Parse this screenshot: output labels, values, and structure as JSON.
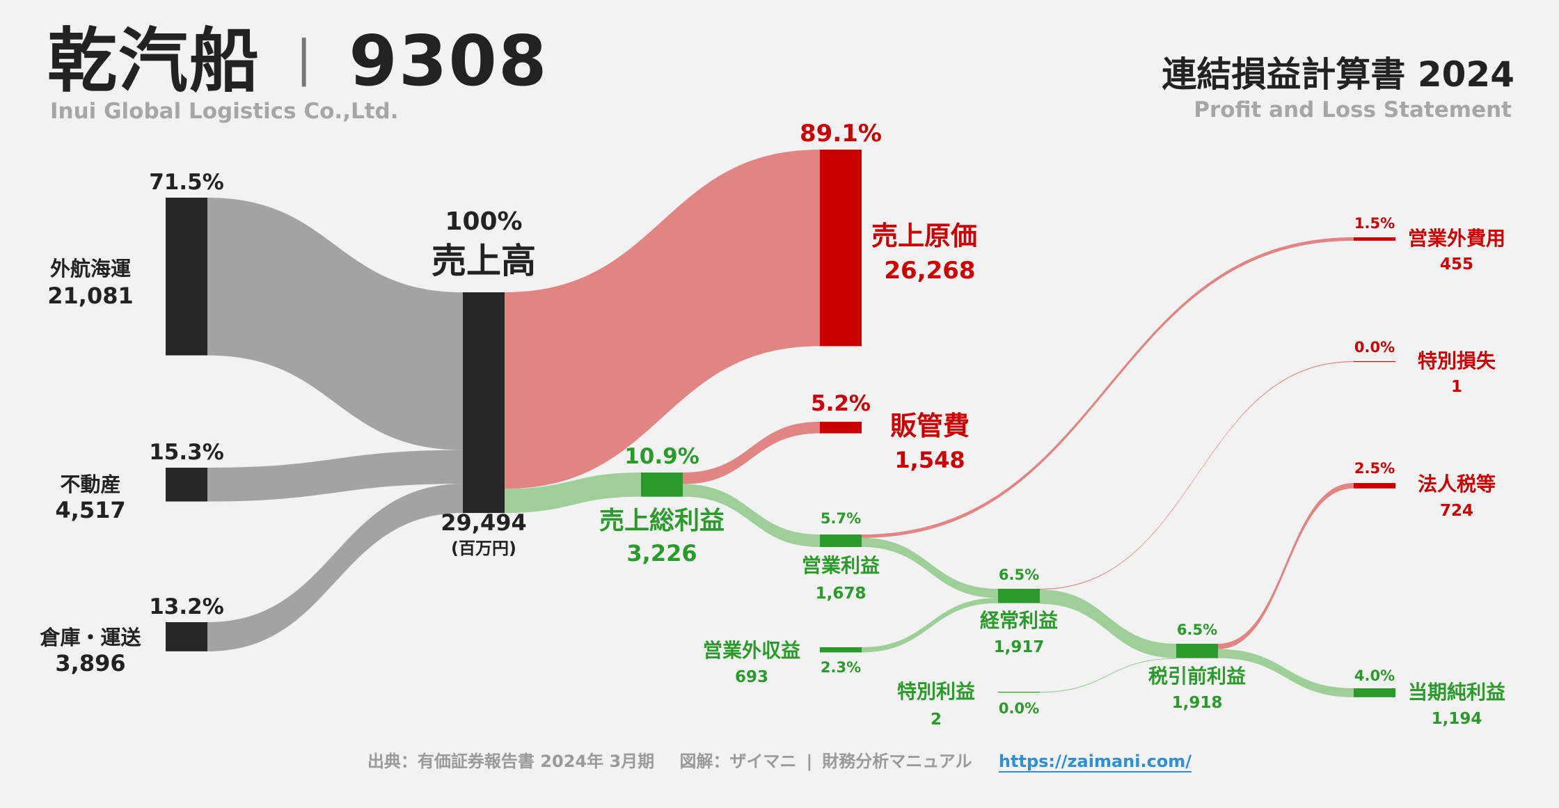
{
  "header": {
    "company": "乾汽船",
    "divider": "|",
    "ticker": "9308",
    "company_en": "Inui Global Logistics Co.,Ltd.",
    "statement_title": "連結損益計算書 2024",
    "statement_en": "Profit and Loss Statement"
  },
  "footer": {
    "source": "出典：有価証券報告書 2024年 3月期",
    "credit": "図解：ザイマニ",
    "divider": "|",
    "site": "財務分析マニュアル",
    "url": "https://zaimani.com/"
  },
  "colors": {
    "node_dark": "#262626",
    "flow_gray": "#a3a3a3",
    "red": "#cc0000",
    "flow_red": "#e08484",
    "green": "#2a9a2a",
    "flow_green": "#9ecf98"
  },
  "chart_data": {
    "type": "sankey",
    "unit": "(百万円)",
    "nodes": [
      {
        "id": "gaikou",
        "name": "外航海運",
        "value": "21,081",
        "pct": "71.5%",
        "color": "dark"
      },
      {
        "id": "fudousan",
        "name": "不動産",
        "value": "4,517",
        "pct": "15.3%",
        "color": "dark"
      },
      {
        "id": "souko",
        "name": "倉庫・運送",
        "value": "3,896",
        "pct": "13.2%",
        "color": "dark"
      },
      {
        "id": "revenue",
        "name": "売上高",
        "value": "29,494",
        "pct": "100%",
        "color": "dark"
      },
      {
        "id": "cogs",
        "name": "売上原価",
        "value": "26,268",
        "pct": "89.1%",
        "color": "red"
      },
      {
        "id": "gross",
        "name": "売上総利益",
        "value": "3,226",
        "pct": "10.9%",
        "color": "green"
      },
      {
        "id": "sga",
        "name": "販管費",
        "value": "1,548",
        "pct": "5.2%",
        "color": "red"
      },
      {
        "id": "op",
        "name": "営業利益",
        "value": "1,678",
        "pct": "5.7%",
        "color": "green"
      },
      {
        "id": "nonop_inc",
        "name": "営業外収益",
        "value": "693",
        "pct": "2.3%",
        "color": "green"
      },
      {
        "id": "nonop_exp",
        "name": "営業外費用",
        "value": "455",
        "pct": "1.5%",
        "color": "red"
      },
      {
        "id": "ordinary",
        "name": "経常利益",
        "value": "1,917",
        "pct": "6.5%",
        "color": "green"
      },
      {
        "id": "extra_gain",
        "name": "特別利益",
        "value": "2",
        "pct": "0.0%",
        "color": "green"
      },
      {
        "id": "extra_loss",
        "name": "特別損失",
        "value": "1",
        "pct": "0.0%",
        "color": "red"
      },
      {
        "id": "pretax",
        "name": "税引前利益",
        "value": "1,918",
        "pct": "6.5%",
        "color": "green"
      },
      {
        "id": "tax",
        "name": "法人税等",
        "value": "724",
        "pct": "2.5%",
        "color": "red"
      },
      {
        "id": "net",
        "name": "当期純利益",
        "value": "1,194",
        "pct": "4.0%",
        "color": "green"
      }
    ],
    "links": [
      {
        "source": "gaikou",
        "target": "revenue",
        "value": 21081
      },
      {
        "source": "fudousan",
        "target": "revenue",
        "value": 4517
      },
      {
        "source": "souko",
        "target": "revenue",
        "value": 3896
      },
      {
        "source": "revenue",
        "target": "cogs",
        "value": 26268
      },
      {
        "source": "revenue",
        "target": "gross",
        "value": 3226
      },
      {
        "source": "gross",
        "target": "sga",
        "value": 1548
      },
      {
        "source": "gross",
        "target": "op",
        "value": 1678
      },
      {
        "source": "op",
        "target": "nonop_exp",
        "value": 455
      },
      {
        "source": "op",
        "target": "ordinary",
        "value": 1223
      },
      {
        "source": "nonop_inc",
        "target": "ordinary",
        "value": 693
      },
      {
        "source": "ordinary",
        "target": "extra_loss",
        "value": 1
      },
      {
        "source": "ordinary",
        "target": "pretax",
        "value": 1916
      },
      {
        "source": "extra_gain",
        "target": "pretax",
        "value": 2
      },
      {
        "source": "pretax",
        "target": "tax",
        "value": 724
      },
      {
        "source": "pretax",
        "target": "net",
        "value": 1194
      }
    ]
  }
}
